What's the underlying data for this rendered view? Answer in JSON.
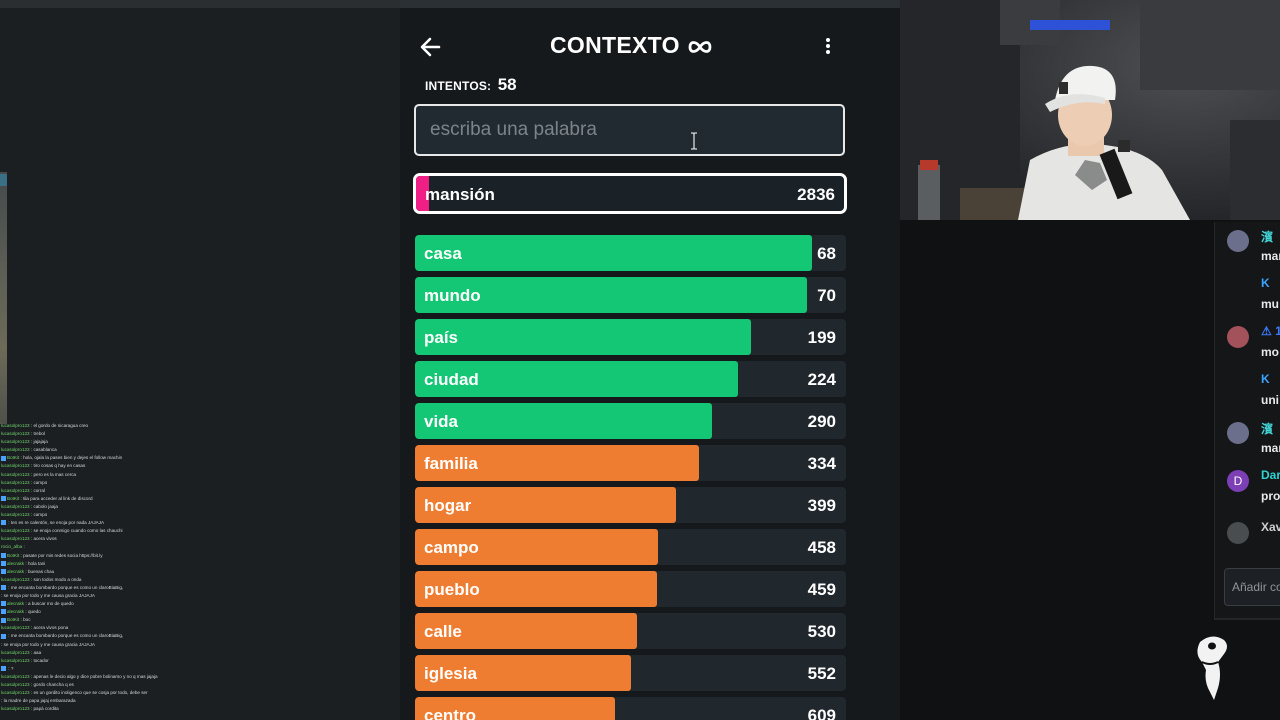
{
  "game": {
    "title": "CONTEXTO",
    "attempts_label": "INTENTOS:",
    "attempts_value": "58",
    "input_placeholder": "escriba una palabra",
    "last_guess": {
      "word": "mansión",
      "rank": "2836",
      "fill_fraction": 0.03
    },
    "guesses": [
      {
        "word": "casa",
        "rank": "68",
        "fill_fraction": 0.92,
        "color": "#13c774"
      },
      {
        "word": "mundo",
        "rank": "70",
        "fill_fraction": 0.91,
        "color": "#13c774"
      },
      {
        "word": "país",
        "rank": "199",
        "fill_fraction": 0.78,
        "color": "#13c774"
      },
      {
        "word": "ciudad",
        "rank": "224",
        "fill_fraction": 0.75,
        "color": "#13c774"
      },
      {
        "word": "vida",
        "rank": "290",
        "fill_fraction": 0.69,
        "color": "#13c774"
      },
      {
        "word": "familia",
        "rank": "334",
        "fill_fraction": 0.66,
        "color": "#ef7d31"
      },
      {
        "word": "hogar",
        "rank": "399",
        "fill_fraction": 0.605,
        "color": "#ef7d31"
      },
      {
        "word": "campo",
        "rank": "458",
        "fill_fraction": 0.563,
        "color": "#ef7d31"
      },
      {
        "word": "pueblo",
        "rank": "459",
        "fill_fraction": 0.561,
        "color": "#ef7d31"
      },
      {
        "word": "calle",
        "rank": "530",
        "fill_fraction": 0.514,
        "color": "#ef7d31"
      },
      {
        "word": "iglesia",
        "rank": "552",
        "fill_fraction": 0.5,
        "color": "#ef7d31"
      },
      {
        "word": "centro",
        "rank": "609",
        "fill_fraction": 0.465,
        "color": "#ef7d31"
      }
    ],
    "colors": {
      "green": "#13c774",
      "orange": "#ef7d31",
      "pink": "#ef1f86"
    }
  },
  "stream_chat": {
    "lines": [
      {
        "user": "lucasolpro123",
        "text": "el gordo de nicaragua creo"
      },
      {
        "user": "lucasolpro123",
        "text": "trebol"
      },
      {
        "user": "lucasolpro123",
        "text": "jajajaja"
      },
      {
        "user": "lucasolpro123",
        "text": "casablanca"
      },
      {
        "user": "BotKit",
        "text": "hola, ojala la pases bien y dejes el follow machin",
        "badge": true
      },
      {
        "user": "lucasolpro123",
        "text": "tiro cosas q hay en casas"
      },
      {
        "user": "lucasolpro123",
        "text": "pero es la mas cerca"
      },
      {
        "user": "lucasolpro123",
        "text": "campo"
      },
      {
        "user": "lucasolpro123",
        "text": "corral"
      },
      {
        "user": "BotKit",
        "text": "tila para acceder al link de discord",
        "badge": true
      },
      {
        "user": "lucasolpro123",
        "text": "cabolo jaaja"
      },
      {
        "user": "lucasolpro123",
        "text": "campo"
      },
      {
        "user": "",
        "text": "ten es re calentón, se enoja por nada JAJAJA",
        "badge": true,
        "mod": true
      },
      {
        "user": "lucasolpro123",
        "text": "se enoja conmigo cuando como las chauchi"
      },
      {
        "user": "lucasolpro123",
        "text": "acera vivos"
      },
      {
        "user": "rocio_alba",
        "text": "",
        "badge": false
      },
      {
        "user": "BotKit",
        "text": "pasate por mis redes socia https://bit.ly",
        "badge": true
      },
      {
        "user": "alecrakk",
        "text": "hola tani",
        "badge": true
      },
      {
        "user": "alecrakk",
        "text": "buenas chau",
        "badge": true
      },
      {
        "user": "lucasolpro123",
        "text": "son todos modo a onda"
      },
      {
        "user": "",
        "text": "me encanta bombardo porque es como un claroBiaBig,",
        "badge": true,
        "mod": true
      },
      {
        "user": "",
        "text": "se enoja por todo y me causa gracia JAJAJA"
      },
      {
        "user": "alecrakk",
        "text": "a buscar mo de quedo",
        "badge": true
      },
      {
        "user": "alecrakk",
        "text": "quedo",
        "badge": true
      },
      {
        "user": "BotKit",
        "text": "boc",
        "badge": true
      },
      {
        "user": "lucasolpro123",
        "text": "acera vivos pona"
      },
      {
        "user": "",
        "text": "me encanta bombardo porque es como un claroBiaBig,",
        "badge": true,
        "mod": true
      },
      {
        "user": "",
        "text": "se enoja por todo y me causa gracia JAJAJA"
      },
      {
        "user": "lucasolpro123",
        "text": "aaa"
      },
      {
        "user": "lucasolpro123",
        "text": "tocador"
      },
      {
        "user": "",
        "text": "?",
        "badge": true,
        "mod": true
      },
      {
        "user": "lucasolpro123",
        "text": "apenas le decio algo y dice pobre bolinarso y no q mas jajaja"
      },
      {
        "user": "lucasolpro123",
        "text": "gordo chancha q es"
      },
      {
        "user": "lucasolpro123",
        "text": "es un gordito inoligenco que se cosja por todo, debe ser"
      },
      {
        "user": "",
        "text": "la madre de papa jajaj embarazada"
      },
      {
        "user": "lucasolpro123",
        "text": "papá cordita"
      }
    ]
  },
  "side_chat": {
    "messages": [
      {
        "name": "濱",
        "text": "mar",
        "name_color": "#43d6d6",
        "avatar_color": "#6b6f8c"
      },
      {
        "name": "K",
        "text": "mu",
        "name_color": "#3aa3ff",
        "avatar_color": "#141618"
      },
      {
        "name": "⚠ 1",
        "text": "mo",
        "name_color": "#3b7bff",
        "avatar_color": "#a3525b"
      },
      {
        "name": "K",
        "text": "uni",
        "name_color": "#3aa3ff",
        "avatar_color": "#141618"
      },
      {
        "name": "濱",
        "text": "mar",
        "name_color": "#43d6d6",
        "avatar_color": "#6b6f8c"
      },
      {
        "name": "Dar",
        "text": "pro",
        "name_color": "#2fd3d3",
        "avatar_color": "#7c3fb5",
        "avatar_letter": "D"
      },
      {
        "name": "Xav",
        "text": "",
        "name_color": "#cfcfcf",
        "avatar_color": "#4a4d50"
      }
    ],
    "input_placeholder": "Añadir co"
  }
}
